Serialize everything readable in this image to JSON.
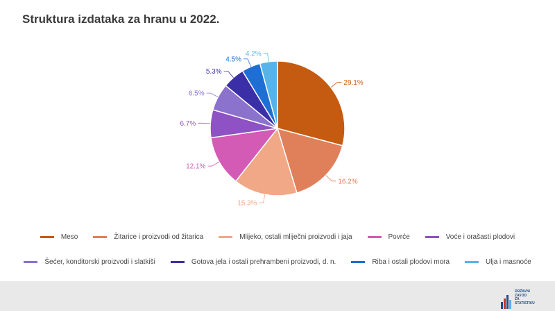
{
  "chart_data": {
    "type": "pie",
    "title": "Struktura izdataka za hranu u 2022.",
    "legend_position": "bottom",
    "categories": [
      "Meso",
      "Žitarice i proizvodi od žitarica",
      "Mlijeko, ostali mliječni proizvodi i jaja",
      "Povrće",
      "Voće i orašasti plodovi",
      "Šećer, konditorski proizvodi i slatkiši",
      "Gotova jela i ostali prehrambeni proizvodi, d. n.",
      "Riba i ostali plodovi mora",
      "Ulja i masnoće"
    ],
    "values": [
      29.1,
      16.2,
      15.3,
      12.1,
      6.7,
      6.5,
      5.3,
      4.5,
      4.2
    ],
    "labels": [
      "29.1%",
      "16.2%",
      "15.3%",
      "12.1%",
      "6.7%",
      "6.5%",
      "5.3%",
      "4.5%",
      "4.2%"
    ],
    "colors": [
      "#c55a11",
      "#e0805a",
      "#f0a886",
      "#d45bb5",
      "#8e52c4",
      "#8b72cc",
      "#3b2fa8",
      "#1f6ed4",
      "#56b4e9"
    ]
  },
  "footer": {
    "logo_text": [
      "DRŽAVNI",
      "ZAVOD",
      "ZA",
      "STATISTIKU"
    ]
  }
}
